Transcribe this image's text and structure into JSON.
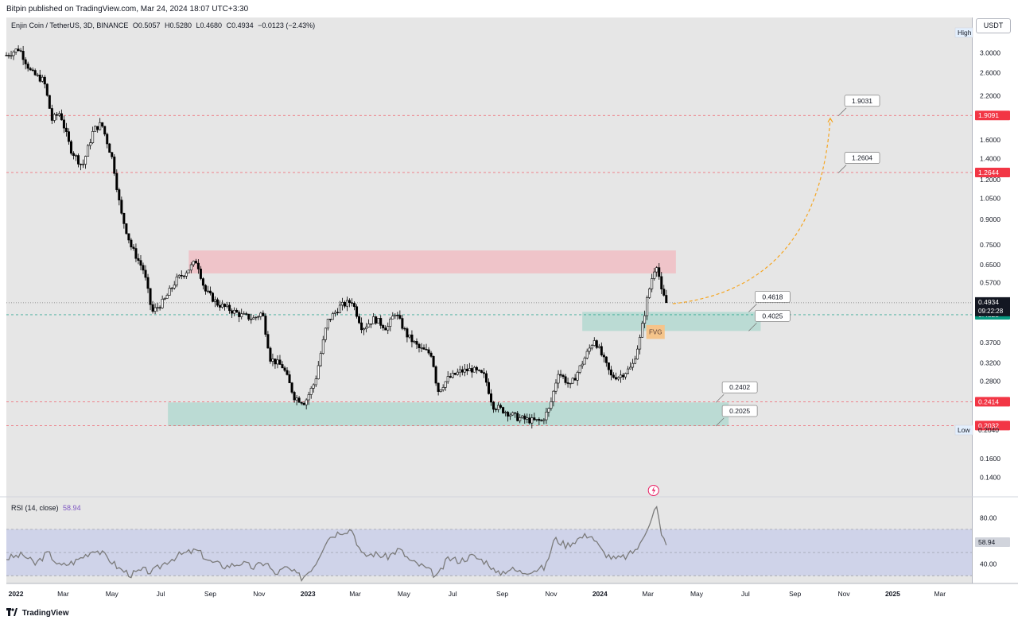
{
  "header": {
    "published": "Bitpin published on TradingView.com, Mar 24, 2024 18:07 UTC+3:30"
  },
  "symbol": {
    "name": "Enjin Coin / TetherUS, 3D, BINANCE",
    "open": "O0.5057",
    "high": "H0.5280",
    "low": "L0.4680",
    "close": "C0.4934",
    "change": "−0.0123 (−2.43%)"
  },
  "currency_button": "USDT",
  "footer": {
    "brand": "TradingView"
  },
  "colors": {
    "candle_up": "#ffffff",
    "candle_down": "#000000",
    "resistance_zone": "#f2b8bf",
    "support_zone": "#a8d5cc",
    "fvg": "#f5c48a",
    "rsi_line": "#7b7b7b",
    "rsi_band": "#c5cae9",
    "red_level": "#f23645",
    "green_level": "#089981",
    "projection": "#f5a623"
  },
  "chart_data": [
    {
      "type": "candlestick",
      "title": "Enjin Coin / TetherUS, 3D, BINANCE",
      "y_scale": "log",
      "ylim": [
        0.125,
        3.7
      ],
      "xlim": [
        "2021-12-20",
        "2025-04-10"
      ],
      "x_ticks": [
        {
          "label": "2022",
          "date": "2022-01-01",
          "bold": true
        },
        {
          "label": "Mar",
          "date": "2022-03-01"
        },
        {
          "label": "May",
          "date": "2022-05-01"
        },
        {
          "label": "Jul",
          "date": "2022-07-01"
        },
        {
          "label": "Sep",
          "date": "2022-09-01"
        },
        {
          "label": "Nov",
          "date": "2022-11-01"
        },
        {
          "label": "2023",
          "date": "2023-01-01",
          "bold": true
        },
        {
          "label": "Mar",
          "date": "2023-03-01"
        },
        {
          "label": "May",
          "date": "2023-05-01"
        },
        {
          "label": "Jul",
          "date": "2023-07-01"
        },
        {
          "label": "Sep",
          "date": "2023-09-01"
        },
        {
          "label": "Nov",
          "date": "2023-11-01"
        },
        {
          "label": "2024",
          "date": "2024-01-01",
          "bold": true
        },
        {
          "label": "Mar",
          "date": "2024-03-01"
        },
        {
          "label": "May",
          "date": "2024-05-01"
        },
        {
          "label": "Jul",
          "date": "2024-07-01"
        },
        {
          "label": "Sep",
          "date": "2024-09-01"
        },
        {
          "label": "Nov",
          "date": "2024-11-01"
        },
        {
          "label": "2025",
          "date": "2025-01-01",
          "bold": true
        },
        {
          "label": "Mar",
          "date": "2025-03-01"
        }
      ],
      "y_ticks": [
        "3.0000",
        "2.6000",
        "2.2000",
        "1.6000",
        "1.4000",
        "1.2000",
        "1.0500",
        "0.9000",
        "0.7500",
        "0.6500",
        "0.5700",
        "0.3700",
        "0.3200",
        "0.2800",
        "0.1600",
        "0.1400"
      ],
      "y_tick_values": [
        3.0,
        2.6,
        2.2,
        1.6,
        1.4,
        1.2,
        1.05,
        0.9,
        0.75,
        0.65,
        0.57,
        0.37,
        0.32,
        0.28,
        0.16,
        0.14
      ],
      "price_path": [
        [
          "2021-12-20",
          2.95
        ],
        [
          "2022-01-05",
          3.1
        ],
        [
          "2022-01-20",
          2.6
        ],
        [
          "2022-02-05",
          2.45
        ],
        [
          "2022-02-15",
          1.85
        ],
        [
          "2022-02-25",
          1.95
        ],
        [
          "2022-03-10",
          1.5
        ],
        [
          "2022-03-25",
          1.32
        ],
        [
          "2022-04-08",
          1.72
        ],
        [
          "2022-04-18",
          1.8
        ],
        [
          "2022-05-02",
          1.38
        ],
        [
          "2022-05-12",
          0.95
        ],
        [
          "2022-05-25",
          0.74
        ],
        [
          "2022-06-10",
          0.62
        ],
        [
          "2022-06-20",
          0.46
        ],
        [
          "2022-07-05",
          0.5
        ],
        [
          "2022-07-20",
          0.58
        ],
        [
          "2022-08-05",
          0.63
        ],
        [
          "2022-08-15",
          0.67
        ],
        [
          "2022-08-25",
          0.54
        ],
        [
          "2022-09-10",
          0.49
        ],
        [
          "2022-09-25",
          0.47
        ],
        [
          "2022-10-10",
          0.45
        ],
        [
          "2022-10-25",
          0.44
        ],
        [
          "2022-11-05",
          0.46
        ],
        [
          "2022-11-15",
          0.33
        ],
        [
          "2022-12-01",
          0.31
        ],
        [
          "2022-12-15",
          0.25
        ],
        [
          "2022-12-28",
          0.24
        ],
        [
          "2023-01-10",
          0.28
        ],
        [
          "2023-01-25",
          0.43
        ],
        [
          "2023-02-10",
          0.48
        ],
        [
          "2023-02-25",
          0.5
        ],
        [
          "2023-03-10",
          0.41
        ],
        [
          "2023-03-25",
          0.44
        ],
        [
          "2023-04-10",
          0.41
        ],
        [
          "2023-04-20",
          0.46
        ],
        [
          "2023-05-05",
          0.39
        ],
        [
          "2023-05-20",
          0.355
        ],
        [
          "2023-06-05",
          0.34
        ],
        [
          "2023-06-12",
          0.26
        ],
        [
          "2023-06-25",
          0.285
        ],
        [
          "2023-07-10",
          0.3
        ],
        [
          "2023-07-25",
          0.305
        ],
        [
          "2023-08-10",
          0.29
        ],
        [
          "2023-08-20",
          0.235
        ],
        [
          "2023-09-05",
          0.225
        ],
        [
          "2023-09-20",
          0.215
        ],
        [
          "2023-10-10",
          0.21
        ],
        [
          "2023-10-20",
          0.21
        ],
        [
          "2023-10-30",
          0.23
        ],
        [
          "2023-11-10",
          0.3
        ],
        [
          "2023-11-25",
          0.27
        ],
        [
          "2023-12-10",
          0.32
        ],
        [
          "2023-12-25",
          0.38
        ],
        [
          "2024-01-05",
          0.33
        ],
        [
          "2024-01-15",
          0.29
        ],
        [
          "2024-01-25",
          0.29
        ],
        [
          "2024-02-10",
          0.31
        ],
        [
          "2024-02-20",
          0.38
        ],
        [
          "2024-03-01",
          0.52
        ],
        [
          "2024-03-08",
          0.62
        ],
        [
          "2024-03-13",
          0.66
        ],
        [
          "2024-03-17",
          0.54
        ],
        [
          "2024-03-24",
          0.4934
        ]
      ],
      "zones": [
        {
          "type": "resistance",
          "from": "2022-08-05",
          "to": "2024-04-05",
          "low": 0.61,
          "high": 0.72
        },
        {
          "type": "support",
          "from": "2023-12-10",
          "to": "2024-07-20",
          "low": 0.4025,
          "high": 0.4618
        },
        {
          "type": "support",
          "from": "2022-07-10",
          "to": "2024-06-10",
          "low": 0.2025,
          "high": 0.2402
        }
      ],
      "fvg": {
        "label": "FVG",
        "from": "2024-02-28",
        "to": "2024-03-22",
        "low": 0.38,
        "high": 0.42
      },
      "horizontal_levels": [
        {
          "value": 1.9091,
          "label": "1.9091",
          "color": "red"
        },
        {
          "value": 1.2644,
          "label": "1.2644",
          "color": "red"
        },
        {
          "value": 0.4525,
          "label": "0.4525",
          "color": "green"
        },
        {
          "value": 0.2414,
          "label": "0.2414",
          "color": "red"
        },
        {
          "value": 0.2032,
          "label": "0.2032",
          "color": "red"
        },
        {
          "value": 0.4934,
          "label": "0.4934",
          "color": "black",
          "style": "dotted"
        }
      ],
      "callouts": [
        {
          "label": "1.9031",
          "date": "2024-10-25",
          "value": 1.9031
        },
        {
          "label": "1.2604",
          "date": "2024-10-25",
          "value": 1.2604
        },
        {
          "label": "0.4618",
          "date": "2024-07-05",
          "value": 0.4618
        },
        {
          "label": "0.4025",
          "date": "2024-07-05",
          "value": 0.4025
        },
        {
          "label": "0.2402",
          "date": "2024-05-25",
          "value": 0.2402
        },
        {
          "label": "0.2025",
          "date": "2024-05-25",
          "value": 0.2025
        }
      ],
      "projection": {
        "from": [
          "2024-04-01",
          0.49
        ],
        "to": [
          "2024-10-15",
          1.87
        ],
        "style": "dashed-arrow"
      },
      "current_price": {
        "value": "0.4934",
        "countdown": "09:22:28"
      },
      "scale_labels": {
        "high": "High",
        "low": "Low",
        "low_value": "0.2040"
      }
    },
    {
      "type": "line",
      "title": "RSI (14, close)",
      "value_label": "58.94",
      "ylim": [
        24,
        96
      ],
      "band": [
        30,
        70
      ],
      "y_ticks": [
        "80.00",
        "40.00"
      ],
      "y_tick_values": [
        80,
        40
      ],
      "series": [
        {
          "name": "RSI (14, close)",
          "values_path": [
            [
              "2021-12-20",
              45
            ],
            [
              "2022-01-10",
              48
            ],
            [
              "2022-01-25",
              40
            ],
            [
              "2022-02-10",
              50
            ],
            [
              "2022-02-25",
              38
            ],
            [
              "2022-03-15",
              42
            ],
            [
              "2022-04-10",
              53
            ],
            [
              "2022-04-25",
              46
            ],
            [
              "2022-05-10",
              36
            ],
            [
              "2022-05-25",
              31
            ],
            [
              "2022-06-10",
              35
            ],
            [
              "2022-06-20",
              33
            ],
            [
              "2022-07-10",
              43
            ],
            [
              "2022-07-25",
              48
            ],
            [
              "2022-08-15",
              52
            ],
            [
              "2022-09-01",
              42
            ],
            [
              "2022-09-20",
              38
            ],
            [
              "2022-10-10",
              41
            ],
            [
              "2022-10-25",
              37
            ],
            [
              "2022-11-10",
              42
            ],
            [
              "2022-11-20",
              31
            ],
            [
              "2022-12-05",
              37
            ],
            [
              "2022-12-25",
              28
            ],
            [
              "2023-01-10",
              40
            ],
            [
              "2023-01-25",
              62
            ],
            [
              "2023-02-10",
              68
            ],
            [
              "2023-02-25",
              70
            ],
            [
              "2023-03-10",
              47
            ],
            [
              "2023-03-25",
              49
            ],
            [
              "2023-04-10",
              46
            ],
            [
              "2023-04-25",
              53
            ],
            [
              "2023-05-10",
              42
            ],
            [
              "2023-05-25",
              38
            ],
            [
              "2023-06-12",
              29
            ],
            [
              "2023-06-25",
              45
            ],
            [
              "2023-07-10",
              43
            ],
            [
              "2023-07-25",
              47
            ],
            [
              "2023-08-15",
              41
            ],
            [
              "2023-08-25",
              31
            ],
            [
              "2023-09-10",
              36
            ],
            [
              "2023-09-25",
              33
            ],
            [
              "2023-10-10",
              35
            ],
            [
              "2023-10-25",
              37
            ],
            [
              "2023-11-05",
              62
            ],
            [
              "2023-11-20",
              56
            ],
            [
              "2023-12-05",
              62
            ],
            [
              "2023-12-20",
              66
            ],
            [
              "2024-01-05",
              50
            ],
            [
              "2024-01-20",
              44
            ],
            [
              "2024-02-05",
              47
            ],
            [
              "2024-02-20",
              56
            ],
            [
              "2024-03-01",
              73
            ],
            [
              "2024-03-10",
              88
            ],
            [
              "2024-03-13",
              89
            ],
            [
              "2024-03-17",
              65
            ],
            [
              "2024-03-24",
              58.94
            ]
          ]
        }
      ]
    }
  ]
}
